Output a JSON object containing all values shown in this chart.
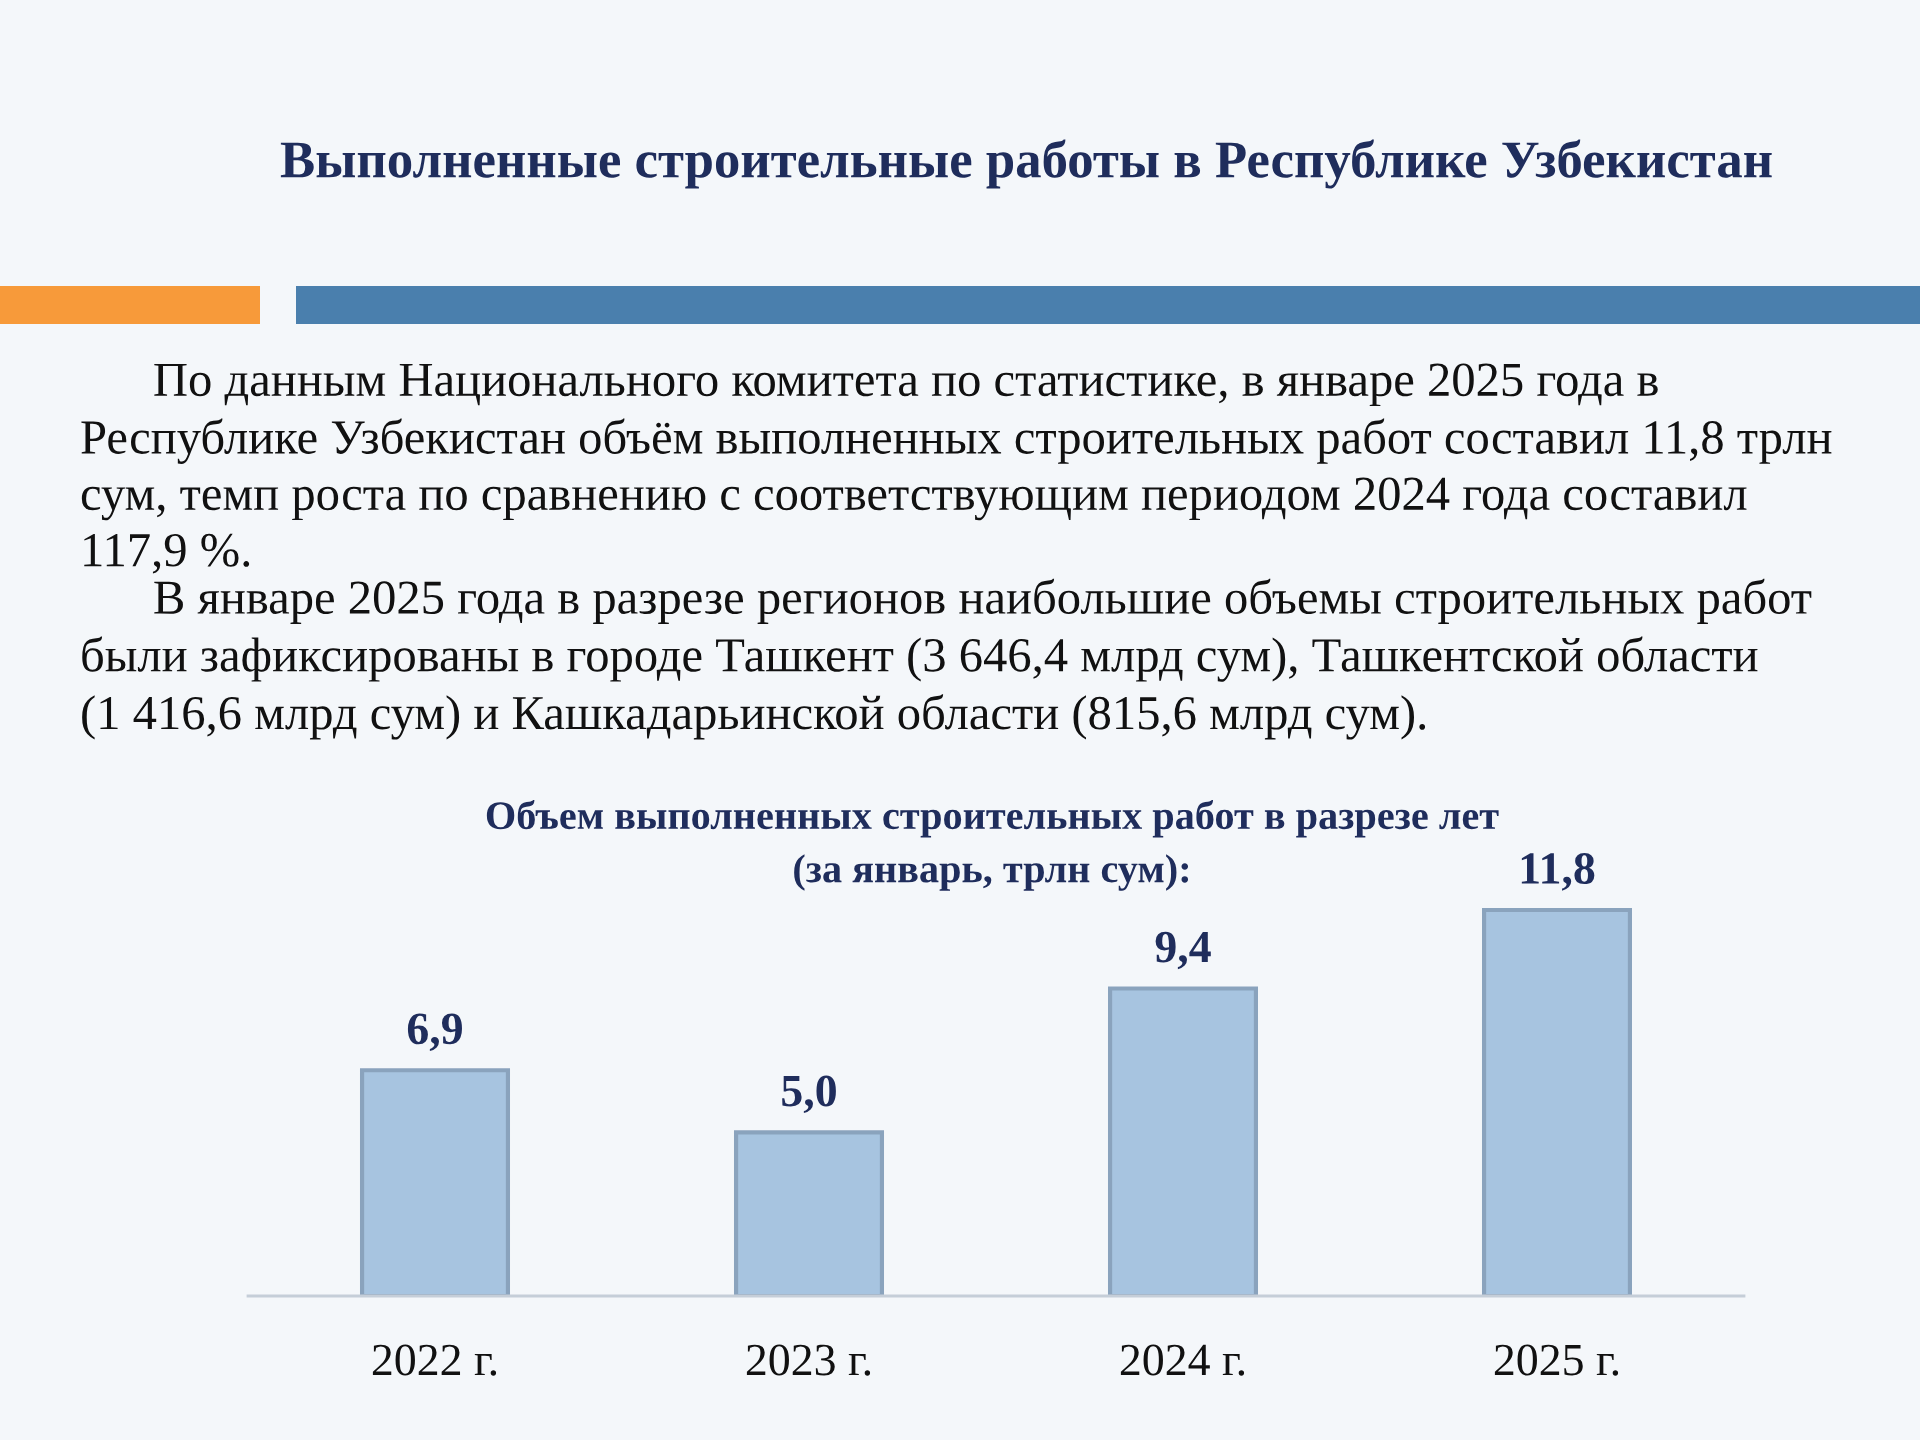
{
  "chart_data": {
    "type": "bar",
    "title": "Выполненные строительные работы в Республике Узбекистан",
    "subtitle": "Объем выполненных строительных работ в разрезе лет\n(за январь, трлн сум):",
    "annotations": [
      "По данным Национального комитета по статистике, в январе 2025 года в Республике Узбекистан объём выполненных строительных работ составил 11,8 трлн сум, темп роста по сравнению с соответствующим периодом 2024 года составил 117,9 %.",
      "В январе 2025 года в разрезе регионов наибольшие объемы строительных работ были зафиксированы в городе Ташкент (3 646,4 млрд сум), Ташкентской области (1 416,6 млрд сум) и Кашкадарьинской области (815,6 млрд сум)."
    ],
    "categories": [
      "2022 г.",
      "2023 г.",
      "2024 г.",
      "2025 г."
    ],
    "values": [
      6.9,
      5.0,
      9.4,
      11.8
    ],
    "value_labels": [
      "6,9",
      "5,0",
      "9,4",
      "11,8"
    ],
    "color": "#a7c4e0"
  }
}
